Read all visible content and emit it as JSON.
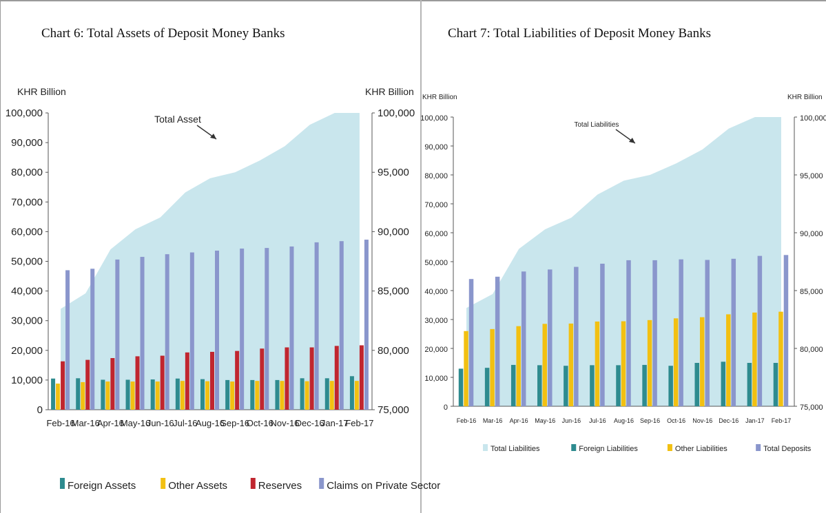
{
  "chart_data": [
    {
      "type": "bar",
      "title": "Chart 6: Total Assets of Deposit Money Banks",
      "ylabel": "KHR Billion",
      "y2label": "KHR Billion",
      "categories": [
        "Feb-16",
        "Mar-16",
        "Apr-16",
        "May-16",
        "Jun-16",
        "Jul-16",
        "Aug-16",
        "Sep-16",
        "Oct-16",
        "Nov-16",
        "Dec-16",
        "Jan-17",
        "Feb-17"
      ],
      "ylim": [
        0,
        100000
      ],
      "y2lim": [
        75000,
        100000
      ],
      "yticks": [
        "0",
        "10,000",
        "20,000",
        "30,000",
        "40,000",
        "50,000",
        "60,000",
        "70,000",
        "80,000",
        "90,000",
        "100,000"
      ],
      "y2ticks": [
        "75,000",
        "80,000",
        "85,000",
        "90,000",
        "95,000",
        "100,000"
      ],
      "area": {
        "name": "Total Asset",
        "axis": "right",
        "values": [
          83500,
          84800,
          88500,
          90200,
          91200,
          93300,
          94500,
          95000,
          96000,
          97200,
          99000,
          100500,
          100500
        ]
      },
      "annotation": "Total Asset",
      "series": [
        {
          "name": "Foreign Assets",
          "color": "#2e8b8f",
          "values": [
            10500,
            10600,
            10100,
            10100,
            10200,
            10500,
            10300,
            10000,
            10000,
            10000,
            10600,
            10600,
            11300
          ]
        },
        {
          "name": "Other Assets",
          "color": "#f2c012",
          "values": [
            8800,
            9300,
            9500,
            9500,
            9500,
            9700,
            9600,
            9500,
            9700,
            9700,
            9600,
            9700,
            9700
          ]
        },
        {
          "name": "Reserves",
          "color": "#c0262f",
          "values": [
            16300,
            16800,
            17400,
            18000,
            18200,
            19300,
            19500,
            19800,
            20600,
            21000,
            21000,
            21500,
            21700
          ]
        },
        {
          "name": "Claims on Private Sector",
          "color": "#8a96cc",
          "values": [
            47000,
            47500,
            50600,
            51500,
            52400,
            53000,
            53600,
            54300,
            54500,
            55000,
            56400,
            56800,
            57300
          ]
        }
      ],
      "legend": "bottom"
    },
    {
      "type": "bar",
      "title": "Chart 7: Total Liabilities of Deposit Money Banks",
      "ylabel": "KHR Billion",
      "y2label": "KHR Billion",
      "categories": [
        "Feb-16",
        "Mar-16",
        "Apr-16",
        "May-16",
        "Jun-16",
        "Jul-16",
        "Aug-16",
        "Sep-16",
        "Oct-16",
        "Nov-16",
        "Dec-16",
        "Jan-17",
        "Feb-17"
      ],
      "ylim": [
        0,
        100000
      ],
      "y2lim": [
        75000,
        100000
      ],
      "yticks": [
        "0",
        "10,000",
        "20,000",
        "30,000",
        "40,000",
        "50,000",
        "60,000",
        "70,000",
        "80,000",
        "90,000",
        "100,000"
      ],
      "y2ticks": [
        "75,000",
        "80,000",
        "85,000",
        "90,000",
        "95,000",
        "100,000"
      ],
      "area": {
        "name": "Total Liabilities",
        "axis": "right",
        "values": [
          83500,
          84700,
          88600,
          90300,
          91300,
          93300,
          94500,
          95000,
          96000,
          97200,
          99000,
          100500,
          100500
        ]
      },
      "annotation": "Total Liabilities",
      "series": [
        {
          "name": "Foreign Liabilities",
          "color": "#2e8b8f",
          "values": [
            13000,
            13300,
            14300,
            14200,
            14000,
            14200,
            14200,
            14300,
            14000,
            15000,
            15400,
            15000,
            15000
          ]
        },
        {
          "name": "Other Liabilities",
          "color": "#f2c012",
          "values": [
            26000,
            26700,
            27700,
            28500,
            28600,
            29300,
            29400,
            29800,
            30400,
            30800,
            31800,
            32400,
            32700
          ]
        },
        {
          "name": "Total Deposits",
          "color": "#8a96cc",
          "values": [
            44000,
            44800,
            46600,
            47300,
            48200,
            49300,
            50500,
            50500,
            50800,
            50600,
            51000,
            52000,
            52300
          ]
        }
      ],
      "legend": "bottom"
    }
  ]
}
